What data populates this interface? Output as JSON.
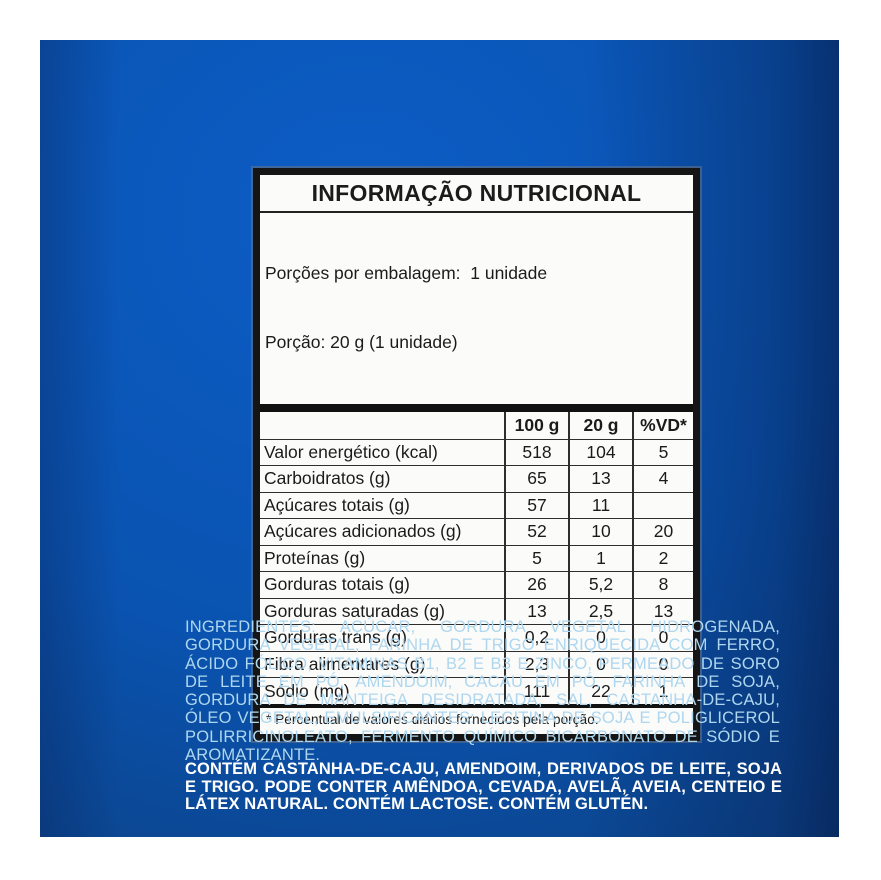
{
  "colors": {
    "page_background": "#ffffff",
    "panel_blue_bright": "#0c5dc6",
    "panel_blue_mid": "#0a53b0",
    "panel_blue_dark": "#0c3a7c",
    "table_background": "#fbfbfa",
    "table_border": "#151515",
    "table_text": "#1b1b1b",
    "ingredients_text": "#aed7ef",
    "allergens_text": "#ffffff"
  },
  "nutrition_table": {
    "title": "INFORMAÇÃO NUTRICIONAL",
    "servings_line1": "Porções por embalagem:  1 unidade",
    "servings_line2": "Porção: 20 g (1 unidade)",
    "columns": [
      "100 g",
      "20 g",
      "%VD*"
    ],
    "rows": [
      {
        "label": "Valor energético (kcal)",
        "v100": "518",
        "v20": "104",
        "vd": "5"
      },
      {
        "label": "Carboidratos (g)",
        "v100": "65",
        "v20": "13",
        "vd": "4"
      },
      {
        "label": "Açúcares totais (g)",
        "v100": "57",
        "v20": "11",
        "vd": ""
      },
      {
        "label": "Açúcares adicionados (g)",
        "v100": "52",
        "v20": "10",
        "vd": "20"
      },
      {
        "label": "Proteínas (g)",
        "v100": "5",
        "v20": "1",
        "vd": "2"
      },
      {
        "label": "Gorduras totais (g)",
        "v100": "26",
        "v20": "5,2",
        "vd": "8"
      },
      {
        "label": "Gorduras saturadas (g)",
        "v100": "13",
        "v20": "2,5",
        "vd": "13"
      },
      {
        "label": "Gorduras trans (g)",
        "v100": "0,2",
        "v20": "0",
        "vd": "0"
      },
      {
        "label": "Fibra alimentares (g)",
        "v100": "2,3",
        "v20": "0",
        "vd": "0"
      },
      {
        "label": "Sódio (mg)",
        "v100": "111",
        "v20": "22",
        "vd": "1"
      }
    ],
    "footnote": "* Percentual de valores diários fornecidos pela porção."
  },
  "ingredients": {
    "text": "INGREDIENTES: AÇÚCAR, GORDURA VEGETAL HIDROGENADA, GORDURA VEGETAL, FARINHA DE TRIGO ENRIQUECIDA COM FERRO, ÁCIDO FÓLICO, VITAMINAS B1, B2 E B3 E ZINCO, PERMEADO DE SORO DE LEITE EM PÓ, AMENDOIM, CACAU EM PÓ, FARINHA DE SOJA, GORDURA DE MANTEIGA DESIDRATADA, SAL, CASTANHA-DE-CAJU, ÓLEO VEGETAL, EMULSIFICANTES: LECITINA DE SOJA E POLIGLICEROL POLIRRICINOLEATO, FERMENTO QUÍMICO BICARBONATO DE SÓDIO E AROMATIZANTE."
  },
  "allergens": {
    "text": "CONTÉM CASTANHA-DE-CAJU, AMENDOIM, DERIVADOS DE LEITE, SOJA E TRIGO. PODE CONTER AMÊNDOA, CEVADA, AVELÃ, AVEIA, CENTEIO E LÁTEX NATURAL. CONTÉM LACTOSE. CONTÉM GLUTÉN."
  }
}
